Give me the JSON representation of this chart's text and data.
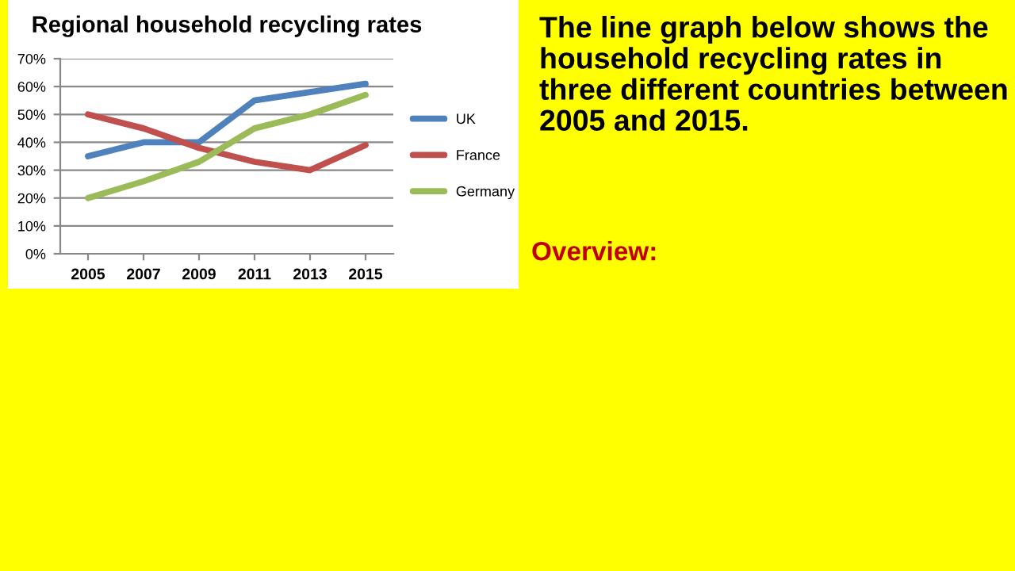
{
  "chart_data": {
    "type": "line",
    "title": "Regional household recycling rates",
    "categories": [
      "2005",
      "2007",
      "2009",
      "2011",
      "2013",
      "2015"
    ],
    "series": [
      {
        "name": "UK",
        "color": "#4f81bd",
        "values": [
          35,
          40,
          40,
          55,
          58,
          61
        ]
      },
      {
        "name": "France",
        "color": "#c0504d",
        "values": [
          50,
          45,
          38,
          33,
          30,
          39
        ]
      },
      {
        "name": "Germany",
        "color": "#9bbb59",
        "values": [
          20,
          26,
          33,
          45,
          50,
          57
        ]
      }
    ],
    "ylim": [
      0,
      70
    ],
    "yticks": [
      {
        "value": 0,
        "label": "0%"
      },
      {
        "value": 10,
        "label": "10%"
      },
      {
        "value": 20,
        "label": "20%"
      },
      {
        "value": 30,
        "label": "30%"
      },
      {
        "value": 40,
        "label": "40%"
      },
      {
        "value": 50,
        "label": "50%"
      },
      {
        "value": 60,
        "label": "60%"
      },
      {
        "value": 70,
        "label": "70%"
      }
    ],
    "grid": "y",
    "legend": "right",
    "marker": "none",
    "line_style": "solid",
    "annotations": [
      "The line graph below shows the household recycling rates in three different countries between 2005 and 2015.",
      "Overview:"
    ]
  }
}
